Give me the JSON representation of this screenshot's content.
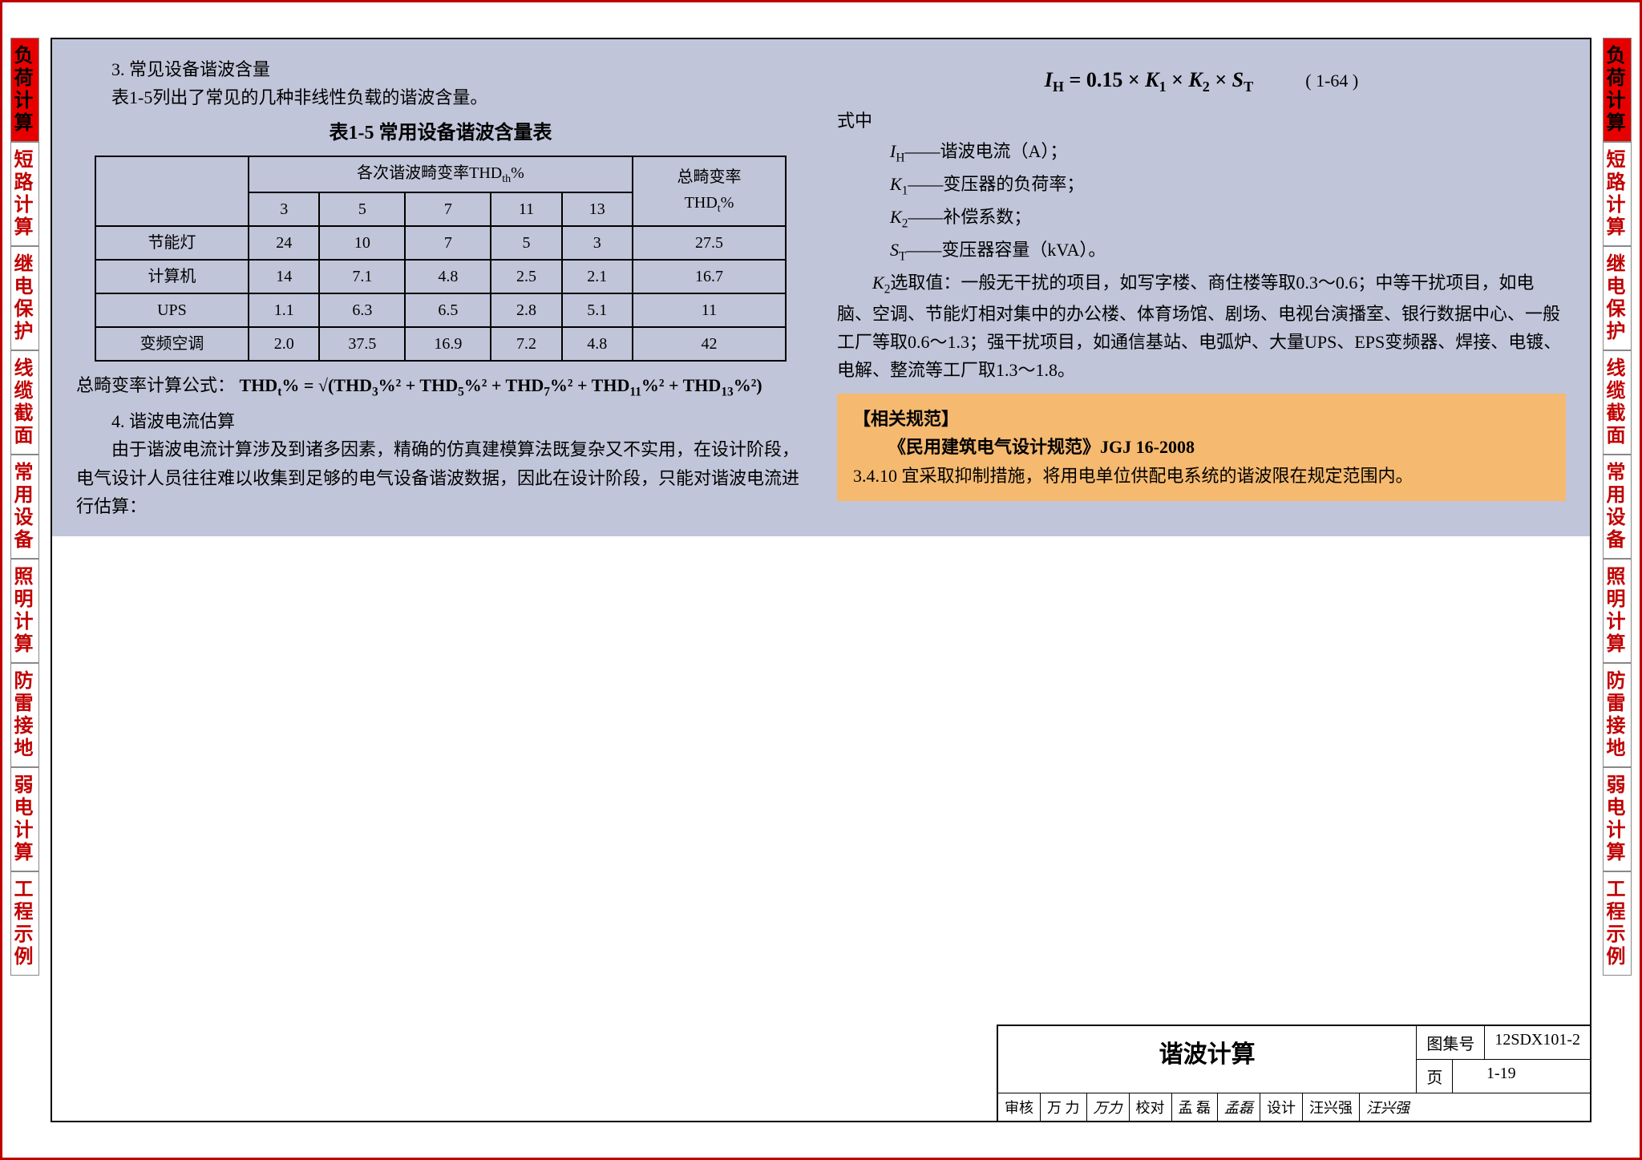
{
  "tabs": [
    "负荷计算",
    "短路计算",
    "继电保护",
    "线缆截面",
    "常用设备",
    "照明计算",
    "防雷接地",
    "弱电计算",
    "工程示例"
  ],
  "activeTabIndex": 0,
  "left": {
    "h3": "3. 常见设备谐波含量",
    "p1": "表1-5列出了常见的几种非线性负载的谐波含量。",
    "tableTitle": "表1-5  常用设备谐波含量表",
    "thdHeader": "各次谐波畸变率THD",
    "thdSub": "th",
    "totalHeader1": "总畸变率",
    "totalHeader2": "THD",
    "totalSub": "t",
    "cols": [
      "3",
      "5",
      "7",
      "11",
      "13"
    ],
    "rows": [
      {
        "name": "节能灯",
        "v": [
          "24",
          "10",
          "7",
          "5",
          "3"
        ],
        "t": "27.5"
      },
      {
        "name": "计算机",
        "v": [
          "14",
          "7.1",
          "4.8",
          "2.5",
          "2.1"
        ],
        "t": "16.7"
      },
      {
        "name": "UPS",
        "v": [
          "1.1",
          "6.3",
          "6.5",
          "2.8",
          "5.1"
        ],
        "t": "11"
      },
      {
        "name": "变频空调",
        "v": [
          "2.0",
          "37.5",
          "16.9",
          "7.2",
          "4.8"
        ],
        "t": "42"
      }
    ],
    "formulaLabel": "总畸变率计算公式：",
    "formula": "THD_t% = √(THD_3%² + THD_5%² + THD_7%² + THD_11%² + THD_13%²)",
    "h4": "4. 谐波电流估算",
    "p2": "由于谐波电流计算涉及到诸多因素，精确的仿真建模算法既复杂又不实用，在设计阶段，电气设计人员往往难以收集到足够的电气设备谐波数据，因此在设计阶段，只能对谐波电流进行估算："
  },
  "right": {
    "eq": "I_H = 0.15 × K_1 × K_2 × S_T",
    "eqNum": "( 1-64 )",
    "defLabel": "式中",
    "defs": [
      {
        "sym": "I_H",
        "txt": "——谐波电流（A）；"
      },
      {
        "sym": "K_1",
        "txt": "——变压器的负荷率；"
      },
      {
        "sym": "K_2",
        "txt": "——补偿系数；"
      },
      {
        "sym": "S_T",
        "txt": "——变压器容量（kVA）。"
      }
    ],
    "k2text": "K_2选取值：一般无干扰的项目，如写字楼、商住楼等取0.3～0.6；中等干扰项目，如电脑、空调、节能灯相对集中的办公楼、体育场馆、剧场、电视台演播室、银行数据中心、一般工厂等取0.6～1.3；强干扰项目，如通信基站、电弧炉、大量UPS、EPS变频器、焊接、电镀、电解、整流等工厂取1.3～1.8。"
  },
  "orange": {
    "title": "【相关规范】",
    "ref": "《民用建筑电气设计规范》JGJ 16-2008",
    "clause": "3.4.10  宜采取抑制措施，将用电单位供配电系统的谐波限在规定范围内。"
  },
  "titleBlock": {
    "title": "谐波计算",
    "codeLabel": "图集号",
    "code": "12SDX101-2",
    "pageLabel": "页",
    "page": "1-19",
    "approvals": [
      {
        "role": "审核",
        "name": "万 力",
        "sig": "万力"
      },
      {
        "role": "校对",
        "name": "孟 磊",
        "sig": "孟磊"
      },
      {
        "role": "设计",
        "name": "汪兴强",
        "sig": "汪兴强"
      }
    ]
  }
}
